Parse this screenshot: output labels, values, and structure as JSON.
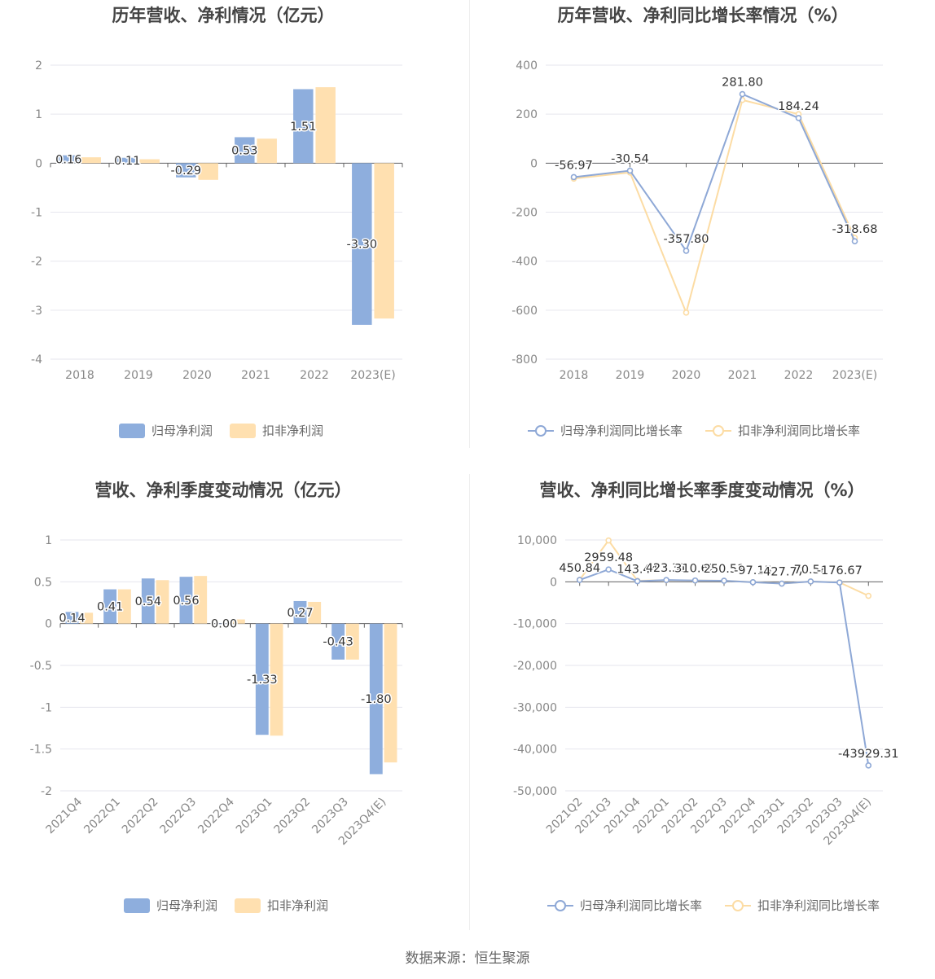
{
  "colors": {
    "blue": "#8eaedd",
    "beige": "#ffe0b0",
    "blue_line": "#8ea8d6",
    "beige_line": "#fcdca4",
    "grid": "#e6e6ee",
    "axis": "#666666"
  },
  "source_text": "数据来源：恒生聚源",
  "chart_data": [
    {
      "type": "bar",
      "title": "历年营收、净利情况（亿元）",
      "categories": [
        "2018",
        "2019",
        "2020",
        "2021",
        "2022",
        "2023(E)"
      ],
      "ylim": [
        -4,
        2
      ],
      "yticks": [
        "2",
        "1",
        "0",
        "-1",
        "-2",
        "-3",
        "-4"
      ],
      "legend": "bottom-center",
      "series": [
        {
          "name": "归母净利润",
          "color": "#8eaedd",
          "values": [
            0.16,
            0.11,
            -0.29,
            0.53,
            1.51,
            -3.3
          ],
          "labels": [
            "0.16",
            "0.11",
            "-0.29",
            "0.53",
            "1.51",
            "-3.30"
          ]
        },
        {
          "name": "扣非净利润",
          "color": "#ffe0b0",
          "values": [
            0.12,
            0.08,
            -0.34,
            0.5,
            1.55,
            -3.17
          ]
        }
      ]
    },
    {
      "type": "line",
      "title": "历年营收、净利同比增长率情况（%）",
      "categories": [
        "2018",
        "2019",
        "2020",
        "2021",
        "2022",
        "2023(E)"
      ],
      "ylim": [
        -800,
        400
      ],
      "yticks": [
        "400",
        "200",
        "0",
        "-200",
        "-400",
        "-600",
        "-800"
      ],
      "legend": "bottom-center",
      "series": [
        {
          "name": "归母净利润同比增长率",
          "color": "#8ea8d6",
          "values": [
            -56.97,
            -30.54,
            -357.8,
            281.8,
            184.24,
            -318.68
          ],
          "labels": [
            "-56.97",
            "-30.54",
            "-357.80",
            "281.80",
            "184.24",
            "-318.68"
          ]
        },
        {
          "name": "扣非净利润同比增长率",
          "color": "#fcdca4",
          "values": [
            -63,
            -38,
            -610,
            258,
            200,
            -305
          ]
        }
      ]
    },
    {
      "type": "bar",
      "title": "营收、净利季度变动情况（亿元）",
      "categories": [
        "2021Q4",
        "2022Q1",
        "2022Q2",
        "2022Q3",
        "2022Q4",
        "2023Q1",
        "2023Q2",
        "2023Q3",
        "2023Q4(E)"
      ],
      "ylim": [
        -2,
        1
      ],
      "yticks": [
        "1",
        "0.5",
        "0",
        "-0.5",
        "-1",
        "-1.5",
        "-2"
      ],
      "legend": "bottom-center",
      "series": [
        {
          "name": "归母净利润",
          "color": "#8eaedd",
          "values": [
            0.14,
            0.41,
            0.54,
            0.56,
            0.0,
            -1.33,
            0.27,
            -0.43,
            -1.8
          ],
          "labels": [
            "0.14",
            "0.41",
            "0.54",
            "0.56",
            "0.00",
            "-1.33",
            "0.27",
            "-0.43",
            "-1.80"
          ]
        },
        {
          "name": "扣非净利润",
          "color": "#ffe0b0",
          "values": [
            0.13,
            0.41,
            0.52,
            0.57,
            0.05,
            -1.34,
            0.26,
            -0.43,
            -1.66
          ]
        }
      ]
    },
    {
      "type": "line",
      "title": "营收、净利同比增长率季度变动情况（%）",
      "categories": [
        "2021Q2",
        "2021Q3",
        "2021Q4",
        "2022Q1",
        "2022Q2",
        "2022Q3",
        "2022Q4",
        "2023Q1",
        "2023Q2",
        "2023Q3",
        "2023Q4(E)"
      ],
      "ylim": [
        -50000,
        10000
      ],
      "yticks": [
        "10,000",
        "0",
        "-10,000",
        "-20,000",
        "-30,000",
        "-40,000",
        "-50,000"
      ],
      "legend": "bottom-center",
      "series": [
        {
          "name": "归母净利润同比增长率",
          "color": "#8ea8d6",
          "values": [
            450.84,
            2959.48,
            143.44,
            423.31,
            310.62,
            250.51,
            -97.15,
            -427.77,
            70.58,
            -176.67,
            -43929.31
          ],
          "labels": [
            "450.84",
            "2959.48",
            "143.44",
            "423.31",
            "310.62",
            "250.51",
            "-97.15",
            "-427.77",
            "70.58",
            "-176.67",
            "-43929.31"
          ]
        },
        {
          "name": "扣非净利润同比增长率",
          "color": "#fcdca4",
          "values": [
            480,
            9900,
            250,
            380,
            300,
            260,
            -80,
            -420,
            70,
            -150,
            -3350
          ]
        }
      ]
    }
  ]
}
